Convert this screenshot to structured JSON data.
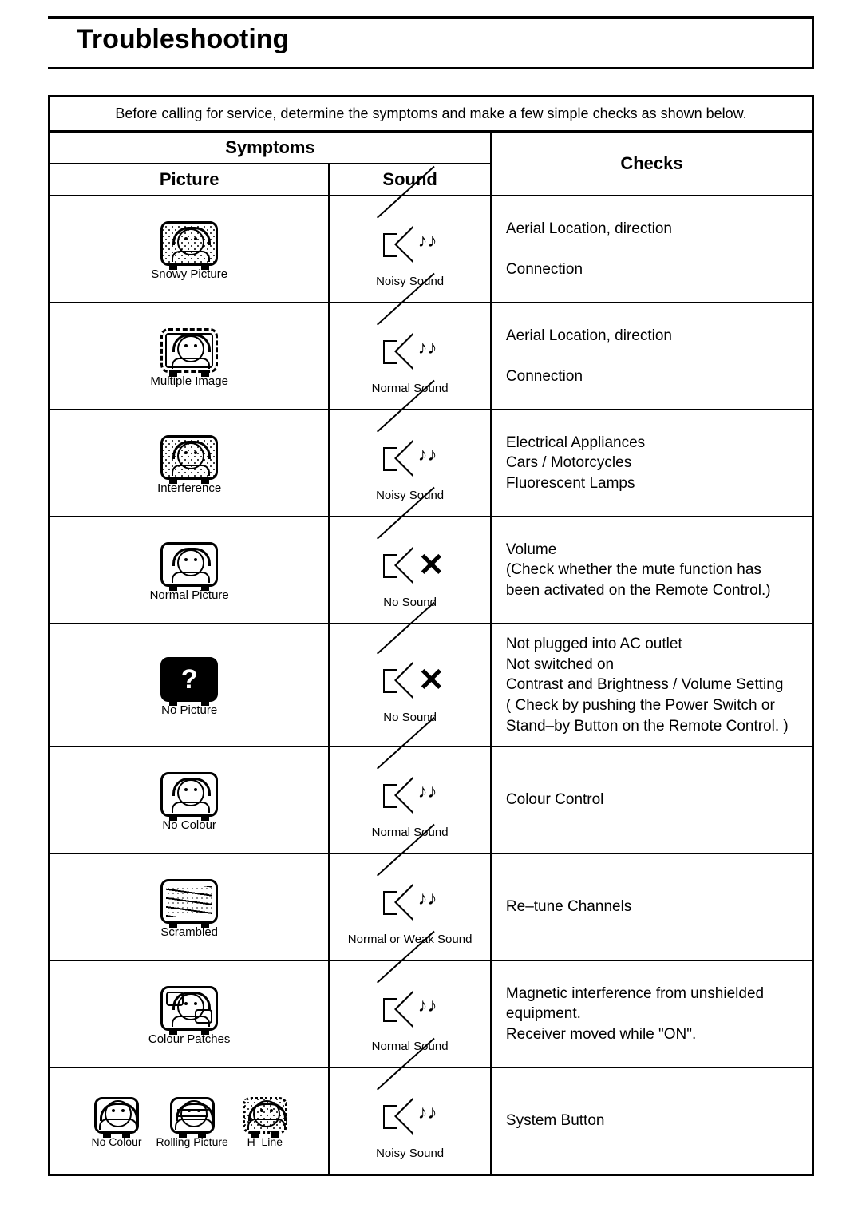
{
  "title": "Troubleshooting",
  "intro": "Before calling for service, determine the symptoms and make a few simple checks as shown below.",
  "headers": {
    "symptoms": "Symptoms",
    "picture": "Picture",
    "sound": "Sound",
    "checks": "Checks"
  },
  "rows": [
    {
      "picture_type": "snowy",
      "picture_label": "Snowy Picture",
      "sound_type": "noisy",
      "sound_label": "Noisy Sound",
      "checks": "Aerial Location, direction\n\nConnection"
    },
    {
      "picture_type": "multiple",
      "picture_label": "Multiple Image",
      "sound_type": "normal",
      "sound_label": "Normal Sound",
      "checks": "Aerial Location, direction\n\nConnection"
    },
    {
      "picture_type": "interference",
      "picture_label": "Interference",
      "sound_type": "noisy",
      "sound_label": "Noisy Sound",
      "checks": "Electrical Appliances\nCars / Motorcycles\nFluorescent Lamps"
    },
    {
      "picture_type": "normal",
      "picture_label": "Normal Picture",
      "sound_type": "mute",
      "sound_label": "No Sound",
      "checks": "Volume\n(Check whether the mute function has been  activated on the Remote Control.)"
    },
    {
      "picture_type": "nopicture",
      "picture_label": "No Picture",
      "sound_type": "mute",
      "sound_label": "No Sound",
      "checks": "Not plugged into AC outlet\nNot switched on\nContrast and Brightness / Volume Setting\n( Check by pushing the Power Switch or\n  Stand–by Button on the Remote Control. )"
    },
    {
      "picture_type": "nocolour",
      "picture_label": "No Colour",
      "sound_type": "normal",
      "sound_label": "Normal Sound",
      "checks": "Colour Control"
    },
    {
      "picture_type": "scrambled",
      "picture_label": "Scrambled",
      "sound_type": "normal",
      "sound_label": "Normal or Weak Sound",
      "checks": "Re–tune Channels"
    },
    {
      "picture_type": "patches",
      "picture_label": "Colour Patches",
      "sound_type": "normal",
      "sound_label": "Normal Sound",
      "checks": "Magnetic interference from unshielded equipment.\nReceiver moved while \"ON\"."
    },
    {
      "picture_type": "multi",
      "multi": [
        {
          "type": "nocolour",
          "label": "No Colour"
        },
        {
          "type": "rolling",
          "label": "Rolling Picture"
        },
        {
          "type": "hline",
          "label": "H–Line"
        }
      ],
      "sound_type": "noisy",
      "sound_label": "Noisy Sound",
      "checks": "System Button"
    }
  ],
  "colors": {
    "ink": "#000000",
    "paper": "#ffffff"
  }
}
